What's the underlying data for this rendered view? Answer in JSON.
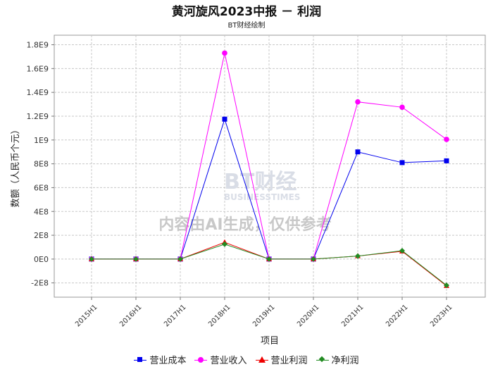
{
  "chart_data": {
    "type": "line",
    "title": "黄河旋风2023中报 － 利润",
    "subtitle": "BT财经绘制",
    "xlabel": "项目",
    "ylabel": "数额（人民币个元）",
    "categories": [
      "2015H1",
      "2016H1",
      "2017H1",
      "2018H1",
      "2019H1",
      "2020H1",
      "2021H1",
      "2022H1",
      "2023H1"
    ],
    "ylim": [
      -320000000,
      1880000000
    ],
    "y_ticks": [
      -200000000,
      0,
      200000000,
      400000000,
      600000000,
      800000000,
      1000000000,
      1200000000,
      1400000000,
      1600000000,
      1800000000
    ],
    "y_tick_labels": [
      "-2E8",
      "0E0",
      "2E8",
      "4E8",
      "6E8",
      "8E8",
      "1E9",
      "1.2E9",
      "1.4E9",
      "1.6E9",
      "1.8E9"
    ],
    "grid": true,
    "legend_position": "bottom",
    "series": [
      {
        "name": "营业成本",
        "color": "#0000ee",
        "marker": "square",
        "values": [
          0,
          0,
          0,
          1175000000,
          0,
          0,
          900000000,
          810000000,
          825000000
        ]
      },
      {
        "name": "营业收入",
        "color": "#ff00ff",
        "marker": "circle",
        "values": [
          0,
          0,
          0,
          1730000000,
          0,
          0,
          1320000000,
          1275000000,
          1005000000
        ]
      },
      {
        "name": "营业利润",
        "color": "#ee0000",
        "marker": "triangle",
        "values": [
          0,
          0,
          0,
          140000000,
          0,
          0,
          25000000,
          65000000,
          -225000000
        ]
      },
      {
        "name": "净利润",
        "color": "#228b22",
        "marker": "diamond",
        "values": [
          0,
          0,
          0,
          125000000,
          0,
          0,
          25000000,
          70000000,
          -220000000
        ]
      }
    ]
  },
  "watermark": {
    "text": "内容由AI生成，仅供参考",
    "brand": "BT财经",
    "brand_sub": "BUSINESSTIMES"
  }
}
